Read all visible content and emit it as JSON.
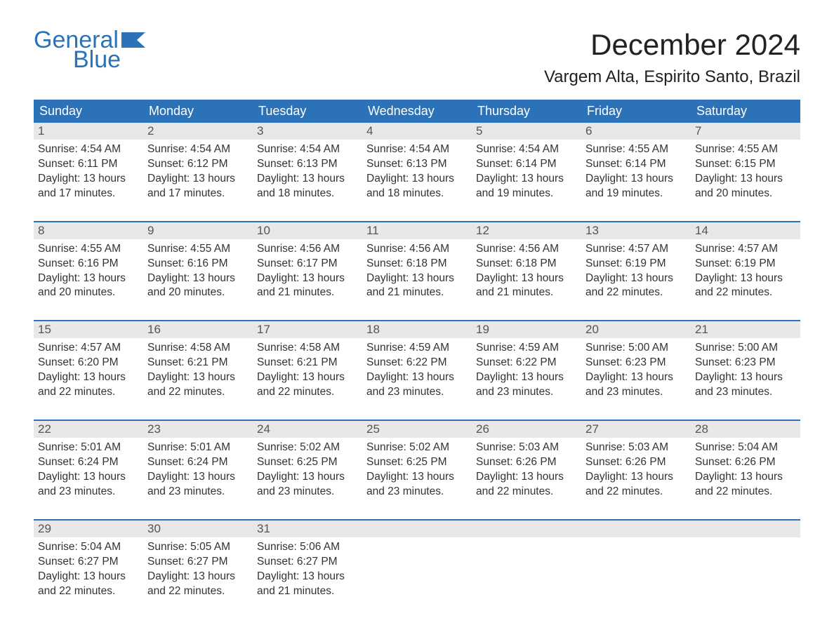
{
  "logo": {
    "word1": "General",
    "word2": "Blue",
    "brand_color": "#2b72b8"
  },
  "title": "December 2024",
  "location": "Vargem Alta, Espirito Santo, Brazil",
  "colors": {
    "header_bg": "#2b72b8",
    "header_text": "#ffffff",
    "daynum_bg": "#e8e8e8",
    "daynum_text": "#555555",
    "body_text": "#333333",
    "week_divider": "#2b72b8",
    "page_bg": "#ffffff"
  },
  "typography": {
    "title_fontsize": 42,
    "location_fontsize": 24,
    "weekday_fontsize": 18,
    "daynum_fontsize": 17,
    "cell_fontsize": 15.5,
    "logo_fontsize": 34
  },
  "weekdays": [
    "Sunday",
    "Monday",
    "Tuesday",
    "Wednesday",
    "Thursday",
    "Friday",
    "Saturday"
  ],
  "weeks": [
    [
      {
        "n": "1",
        "sr": "Sunrise: 4:54 AM",
        "ss": "Sunset: 6:11 PM",
        "d1": "Daylight: 13 hours",
        "d2": "and 17 minutes."
      },
      {
        "n": "2",
        "sr": "Sunrise: 4:54 AM",
        "ss": "Sunset: 6:12 PM",
        "d1": "Daylight: 13 hours",
        "d2": "and 17 minutes."
      },
      {
        "n": "3",
        "sr": "Sunrise: 4:54 AM",
        "ss": "Sunset: 6:13 PM",
        "d1": "Daylight: 13 hours",
        "d2": "and 18 minutes."
      },
      {
        "n": "4",
        "sr": "Sunrise: 4:54 AM",
        "ss": "Sunset: 6:13 PM",
        "d1": "Daylight: 13 hours",
        "d2": "and 18 minutes."
      },
      {
        "n": "5",
        "sr": "Sunrise: 4:54 AM",
        "ss": "Sunset: 6:14 PM",
        "d1": "Daylight: 13 hours",
        "d2": "and 19 minutes."
      },
      {
        "n": "6",
        "sr": "Sunrise: 4:55 AM",
        "ss": "Sunset: 6:14 PM",
        "d1": "Daylight: 13 hours",
        "d2": "and 19 minutes."
      },
      {
        "n": "7",
        "sr": "Sunrise: 4:55 AM",
        "ss": "Sunset: 6:15 PM",
        "d1": "Daylight: 13 hours",
        "d2": "and 20 minutes."
      }
    ],
    [
      {
        "n": "8",
        "sr": "Sunrise: 4:55 AM",
        "ss": "Sunset: 6:16 PM",
        "d1": "Daylight: 13 hours",
        "d2": "and 20 minutes."
      },
      {
        "n": "9",
        "sr": "Sunrise: 4:55 AM",
        "ss": "Sunset: 6:16 PM",
        "d1": "Daylight: 13 hours",
        "d2": "and 20 minutes."
      },
      {
        "n": "10",
        "sr": "Sunrise: 4:56 AM",
        "ss": "Sunset: 6:17 PM",
        "d1": "Daylight: 13 hours",
        "d2": "and 21 minutes."
      },
      {
        "n": "11",
        "sr": "Sunrise: 4:56 AM",
        "ss": "Sunset: 6:18 PM",
        "d1": "Daylight: 13 hours",
        "d2": "and 21 minutes."
      },
      {
        "n": "12",
        "sr": "Sunrise: 4:56 AM",
        "ss": "Sunset: 6:18 PM",
        "d1": "Daylight: 13 hours",
        "d2": "and 21 minutes."
      },
      {
        "n": "13",
        "sr": "Sunrise: 4:57 AM",
        "ss": "Sunset: 6:19 PM",
        "d1": "Daylight: 13 hours",
        "d2": "and 22 minutes."
      },
      {
        "n": "14",
        "sr": "Sunrise: 4:57 AM",
        "ss": "Sunset: 6:19 PM",
        "d1": "Daylight: 13 hours",
        "d2": "and 22 minutes."
      }
    ],
    [
      {
        "n": "15",
        "sr": "Sunrise: 4:57 AM",
        "ss": "Sunset: 6:20 PM",
        "d1": "Daylight: 13 hours",
        "d2": "and 22 minutes."
      },
      {
        "n": "16",
        "sr": "Sunrise: 4:58 AM",
        "ss": "Sunset: 6:21 PM",
        "d1": "Daylight: 13 hours",
        "d2": "and 22 minutes."
      },
      {
        "n": "17",
        "sr": "Sunrise: 4:58 AM",
        "ss": "Sunset: 6:21 PM",
        "d1": "Daylight: 13 hours",
        "d2": "and 22 minutes."
      },
      {
        "n": "18",
        "sr": "Sunrise: 4:59 AM",
        "ss": "Sunset: 6:22 PM",
        "d1": "Daylight: 13 hours",
        "d2": "and 23 minutes."
      },
      {
        "n": "19",
        "sr": "Sunrise: 4:59 AM",
        "ss": "Sunset: 6:22 PM",
        "d1": "Daylight: 13 hours",
        "d2": "and 23 minutes."
      },
      {
        "n": "20",
        "sr": "Sunrise: 5:00 AM",
        "ss": "Sunset: 6:23 PM",
        "d1": "Daylight: 13 hours",
        "d2": "and 23 minutes."
      },
      {
        "n": "21",
        "sr": "Sunrise: 5:00 AM",
        "ss": "Sunset: 6:23 PM",
        "d1": "Daylight: 13 hours",
        "d2": "and 23 minutes."
      }
    ],
    [
      {
        "n": "22",
        "sr": "Sunrise: 5:01 AM",
        "ss": "Sunset: 6:24 PM",
        "d1": "Daylight: 13 hours",
        "d2": "and 23 minutes."
      },
      {
        "n": "23",
        "sr": "Sunrise: 5:01 AM",
        "ss": "Sunset: 6:24 PM",
        "d1": "Daylight: 13 hours",
        "d2": "and 23 minutes."
      },
      {
        "n": "24",
        "sr": "Sunrise: 5:02 AM",
        "ss": "Sunset: 6:25 PM",
        "d1": "Daylight: 13 hours",
        "d2": "and 23 minutes."
      },
      {
        "n": "25",
        "sr": "Sunrise: 5:02 AM",
        "ss": "Sunset: 6:25 PM",
        "d1": "Daylight: 13 hours",
        "d2": "and 23 minutes."
      },
      {
        "n": "26",
        "sr": "Sunrise: 5:03 AM",
        "ss": "Sunset: 6:26 PM",
        "d1": "Daylight: 13 hours",
        "d2": "and 22 minutes."
      },
      {
        "n": "27",
        "sr": "Sunrise: 5:03 AM",
        "ss": "Sunset: 6:26 PM",
        "d1": "Daylight: 13 hours",
        "d2": "and 22 minutes."
      },
      {
        "n": "28",
        "sr": "Sunrise: 5:04 AM",
        "ss": "Sunset: 6:26 PM",
        "d1": "Daylight: 13 hours",
        "d2": "and 22 minutes."
      }
    ],
    [
      {
        "n": "29",
        "sr": "Sunrise: 5:04 AM",
        "ss": "Sunset: 6:27 PM",
        "d1": "Daylight: 13 hours",
        "d2": "and 22 minutes."
      },
      {
        "n": "30",
        "sr": "Sunrise: 5:05 AM",
        "ss": "Sunset: 6:27 PM",
        "d1": "Daylight: 13 hours",
        "d2": "and 22 minutes."
      },
      {
        "n": "31",
        "sr": "Sunrise: 5:06 AM",
        "ss": "Sunset: 6:27 PM",
        "d1": "Daylight: 13 hours",
        "d2": "and 21 minutes."
      },
      null,
      null,
      null,
      null
    ]
  ]
}
